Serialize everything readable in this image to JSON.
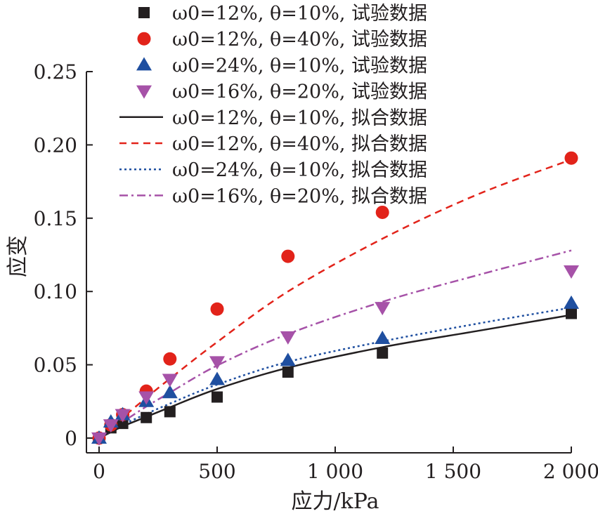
{
  "chart_data": {
    "type": "scatter",
    "xlabel": "应力/kPa",
    "ylabel": "应变",
    "xlim": [
      0,
      2000
    ],
    "ylim": [
      0,
      0.25
    ],
    "x_ticks": [
      {
        "value": 0,
        "label": "0"
      },
      {
        "value": 500,
        "label": "500"
      },
      {
        "value": 1000,
        "label": "1 000"
      },
      {
        "value": 1500,
        "label": "1 500"
      },
      {
        "value": 2000,
        "label": "2 000"
      }
    ],
    "y_ticks": [
      {
        "value": 0,
        "label": "0"
      },
      {
        "value": 0.05,
        "label": "0.05"
      },
      {
        "value": 0.1,
        "label": "0.10"
      },
      {
        "value": 0.15,
        "label": "0.15"
      },
      {
        "value": 0.2,
        "label": "0.20"
      },
      {
        "value": 0.25,
        "label": "0.25"
      }
    ],
    "grid": false,
    "legend_position": "top",
    "series": [
      {
        "name": "ω0=12%, θ=10%, 试验数据",
        "kind": "scatter",
        "marker": "square",
        "color": "#231f20",
        "x": [
          0,
          50,
          100,
          200,
          300,
          500,
          800,
          1200,
          2000
        ],
        "y": [
          0,
          0.007,
          0.01,
          0.014,
          0.018,
          0.028,
          0.045,
          0.058,
          0.085
        ]
      },
      {
        "name": "ω0=12%, θ=40%, 试验数据",
        "kind": "scatter",
        "marker": "circle",
        "color": "#e2231a",
        "x": [
          0,
          50,
          100,
          200,
          300,
          500,
          800,
          1200,
          2000
        ],
        "y": [
          0,
          0.009,
          0.016,
          0.032,
          0.054,
          0.088,
          0.124,
          0.154,
          0.191
        ]
      },
      {
        "name": "ω0=24%, θ=10%, 试验数据",
        "kind": "scatter",
        "marker": "triangle-up",
        "color": "#1f4fa0",
        "x": [
          0,
          50,
          100,
          200,
          300,
          500,
          800,
          1200,
          2000
        ],
        "y": [
          0,
          0.011,
          0.016,
          0.025,
          0.031,
          0.04,
          0.053,
          0.068,
          0.092
        ]
      },
      {
        "name": "ω0=16%, θ=20%, 试验数据",
        "kind": "scatter",
        "marker": "triangle-down",
        "color": "#a652a8",
        "x": [
          0,
          50,
          100,
          200,
          300,
          500,
          800,
          1200,
          2000
        ],
        "y": [
          0,
          0.009,
          0.016,
          0.028,
          0.04,
          0.052,
          0.069,
          0.089,
          0.114
        ]
      },
      {
        "name": "ω0=12%, θ=10%, 拟合数据",
        "kind": "line",
        "dash": "solid",
        "color": "#231f20",
        "x": [
          0,
          50,
          100,
          200,
          300,
          500,
          800,
          1200,
          1600,
          2000
        ],
        "y": [
          0,
          0.004,
          0.008,
          0.0145,
          0.021,
          0.0335,
          0.048,
          0.062,
          0.073,
          0.084
        ]
      },
      {
        "name": "ω0=12%, θ=40%, 拟合数据",
        "kind": "line",
        "dash": "dashed",
        "color": "#e2231a",
        "x": [
          0,
          50,
          100,
          200,
          300,
          500,
          800,
          1200,
          1600,
          2000
        ],
        "y": [
          0,
          0.007,
          0.014,
          0.0275,
          0.0405,
          0.0655,
          0.1,
          0.136,
          0.166,
          0.19
        ]
      },
      {
        "name": "ω0=24%, θ=10%, 拟合数据",
        "kind": "line",
        "dash": "dotted",
        "color": "#1f4fa0",
        "x": [
          0,
          50,
          100,
          200,
          300,
          500,
          800,
          1200,
          1600,
          2000
        ],
        "y": [
          0,
          0.0045,
          0.009,
          0.0165,
          0.0235,
          0.0365,
          0.052,
          0.066,
          0.078,
          0.089
        ]
      },
      {
        "name": "ω0=16%, θ=20%, 拟合数据",
        "kind": "line",
        "dash": "dashdot",
        "color": "#a652a8",
        "x": [
          0,
          50,
          100,
          200,
          300,
          500,
          800,
          1200,
          1600,
          2000
        ],
        "y": [
          0,
          0.0055,
          0.011,
          0.0215,
          0.031,
          0.0495,
          0.071,
          0.093,
          0.111,
          0.128
        ]
      }
    ]
  }
}
